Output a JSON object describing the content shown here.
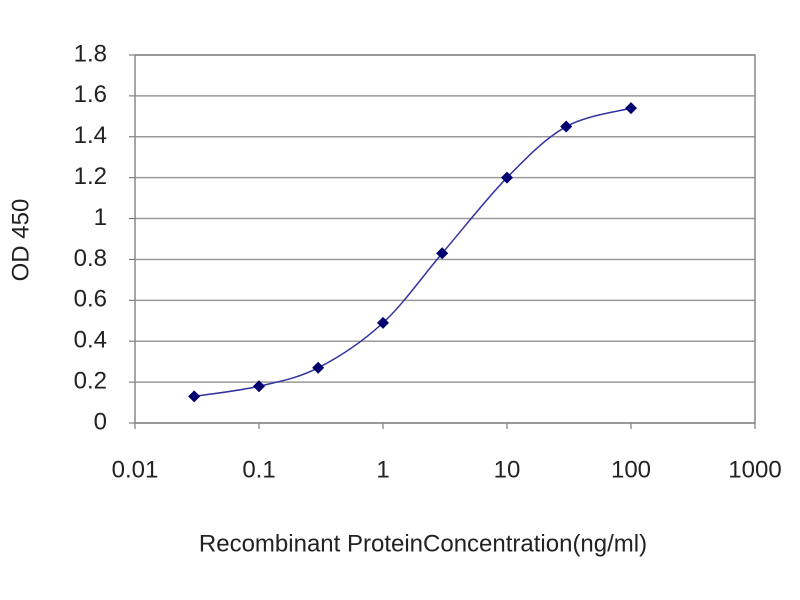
{
  "chart_data": {
    "type": "line",
    "x_label": "Recombinant ProteinConcentration(ng/ml)",
    "y_label": "OD 450",
    "x": [
      0.03,
      0.1,
      0.3,
      1,
      3,
      10,
      30,
      100
    ],
    "values": [
      0.13,
      0.18,
      0.27,
      0.49,
      0.83,
      1.2,
      1.45,
      1.54
    ],
    "color": "#3333a0",
    "marker_color": "#000070",
    "x_log": true,
    "xlim": [
      0.01,
      1000
    ],
    "xticks": [
      0.01,
      0.1,
      1,
      10,
      100,
      1000
    ],
    "ylim": [
      0,
      1.8
    ],
    "yticks": [
      0,
      0.2,
      0.4,
      0.6,
      0.8,
      1,
      1.2,
      1.4,
      1.6,
      1.8
    ],
    "grid": true
  }
}
